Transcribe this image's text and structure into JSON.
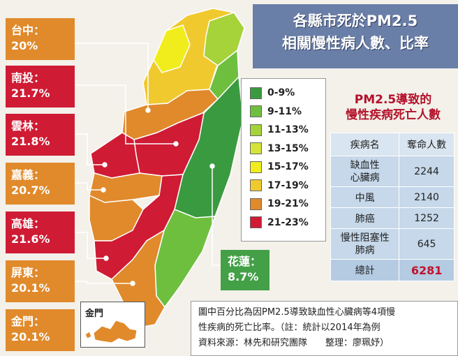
{
  "title": {
    "line1": "各縣市死於PM2.5",
    "line2": "相關慢性病人數、比率"
  },
  "legend": [
    {
      "label": "0-9%",
      "color": "#3a9a3f"
    },
    {
      "label": "9-11%",
      "color": "#6fbf3f"
    },
    {
      "label": "11-13%",
      "color": "#a6d23a"
    },
    {
      "label": "13-15%",
      "color": "#d4e43a"
    },
    {
      "label": "15-17%",
      "color": "#f1ed1c"
    },
    {
      "label": "17-19%",
      "color": "#f0c92e"
    },
    {
      "label": "19-21%",
      "color": "#e08a2c"
    },
    {
      "label": "21-23%",
      "color": "#cf1b34"
    }
  ],
  "labels": [
    {
      "name": "台中：",
      "value": "20%",
      "color": "#e08a2c"
    },
    {
      "name": "南投：",
      "value": "21.7%",
      "color": "#cf1b34"
    },
    {
      "name": "雲林：",
      "value": "21.8%",
      "color": "#cf1b34"
    },
    {
      "name": "嘉義：",
      "value": "20.7%",
      "color": "#e08a2c"
    },
    {
      "name": "高雄：",
      "value": "21.6%",
      "color": "#cf1b34"
    },
    {
      "name": "屏東：",
      "value": "20.1%",
      "color": "#e08a2c"
    },
    {
      "name": "金門：",
      "value": "20.1%",
      "color": "#e08a2c"
    }
  ],
  "hualien": {
    "name": "花蓮：",
    "value": "8.7%"
  },
  "table": {
    "title1": "PM2.5導致的",
    "title2": "慢性疾病死亡人數",
    "header": [
      "疾病名",
      "奪命人數"
    ],
    "rows": [
      {
        "name": "缺血性\n心臟病",
        "value": "2244"
      },
      {
        "name": "中風",
        "value": "2140"
      },
      {
        "name": "肺癌",
        "value": "1252"
      },
      {
        "name": "慢性阻塞性\n肺病",
        "value": "645"
      }
    ],
    "total": {
      "name": "總計",
      "value": "6281"
    }
  },
  "kinmen_label": "金門",
  "note": {
    "line1": "圖中百分比為因PM2.5導致缺血性心臟病等4項慢",
    "line2": "性疾病的死亡比率。（註：統計以2014年為例",
    "line3": "資料來源：林先和研究團隊　　整理：廖珮妤）"
  }
}
